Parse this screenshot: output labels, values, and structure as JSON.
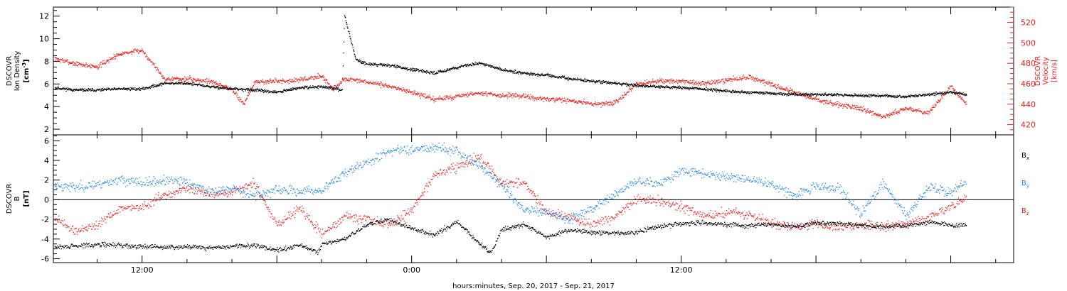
{
  "figure": {
    "xlabel": "hours:minutes, Sep. 20, 2017 - Sep. 21, 2017",
    "x_tick_labels": [
      "12:00",
      "0:00",
      "12:00"
    ]
  },
  "colors": {
    "black": "#000000",
    "red": "#e8201c",
    "blue": "#1e88e5"
  },
  "chart_data": [
    {
      "type": "scatter",
      "panel": "top",
      "xlabel": "hours:minutes, Sep. 20, 2017 - Sep. 21, 2017",
      "x_unit": "hours since Sep. 20, 2017 00:00",
      "xlim": [
        8.05,
        50.8
      ],
      "ylabel": "DSCOVR Ion Density [cm^-3]",
      "ylim": [
        1.5,
        12.8
      ],
      "y_ticks": [
        2,
        4,
        6,
        8,
        10,
        12
      ],
      "y2label": "DSCOVR Velocity [km/s]",
      "y2lim": [
        410,
        535
      ],
      "y2_ticks": [
        420,
        440,
        460,
        480,
        500,
        520
      ],
      "grid": false,
      "series": [
        {
          "name": "Ion Density",
          "axis": "left",
          "color": "black",
          "x": [
            8.1,
            9,
            10,
            11,
            12,
            13,
            14,
            15,
            16,
            17,
            18,
            19,
            20,
            20.9,
            21,
            21.5,
            22,
            23,
            24,
            25,
            26,
            27,
            28,
            29,
            30,
            31,
            32,
            33,
            34,
            35,
            36,
            37,
            38,
            39,
            40,
            41,
            42,
            43,
            44,
            45,
            46,
            47,
            48,
            48.7
          ],
          "y": [
            5.7,
            5.5,
            5.5,
            5.6,
            5.6,
            6.1,
            6.1,
            5.8,
            5.6,
            5.5,
            5.3,
            5.7,
            5.8,
            5.5,
            12.1,
            8.2,
            7.8,
            7.7,
            7.3,
            7.0,
            7.5,
            7.9,
            7.3,
            7.0,
            6.8,
            6.5,
            6.3,
            6.1,
            5.9,
            5.8,
            5.7,
            5.6,
            5.4,
            5.3,
            5.2,
            5.1,
            5.1,
            5.1,
            5.0,
            5.0,
            4.9,
            5.1,
            5.3,
            5.1
          ]
        },
        {
          "name": "Velocity",
          "axis": "right",
          "color": "red",
          "x": [
            8.1,
            9,
            10,
            11,
            12,
            13,
            14,
            15,
            16,
            16.5,
            17,
            18,
            19,
            20,
            20.5,
            21,
            22,
            23,
            24,
            25,
            26,
            27,
            28,
            29,
            30,
            31,
            32,
            33,
            34,
            35,
            36,
            37,
            38,
            39,
            40,
            41,
            42,
            43,
            44,
            45,
            46,
            47,
            48,
            48.7
          ],
          "y": [
            485,
            480,
            477,
            490,
            493,
            465,
            465,
            463,
            455,
            440,
            462,
            463,
            464,
            468,
            455,
            465,
            462,
            458,
            452,
            445,
            448,
            451,
            449,
            448,
            445,
            444,
            441,
            441,
            460,
            463,
            463,
            460,
            464,
            467,
            460,
            452,
            445,
            440,
            436,
            428,
            436,
            432,
            458,
            440
          ]
        }
      ]
    },
    {
      "type": "scatter",
      "panel": "bottom",
      "xlabel": "hours:minutes, Sep. 20, 2017 - Sep. 21, 2017",
      "x_unit": "hours since Sep. 20, 2017 00:00",
      "xlim": [
        8.05,
        50.8
      ],
      "ylabel": "DSCOVR B [nT]",
      "ylim": [
        -6.4,
        6.6
      ],
      "y_ticks": [
        -6,
        -4,
        -2,
        0,
        2,
        4,
        6
      ],
      "grid": false,
      "zero_line": true,
      "series": [
        {
          "name": "B_x",
          "color": "black",
          "x": [
            8.1,
            9,
            10,
            11,
            12,
            13,
            14,
            15,
            16,
            17,
            18,
            19,
            19.8,
            20,
            21,
            22,
            23,
            24,
            25,
            26,
            27,
            27.5,
            28,
            29,
            30,
            31,
            32,
            33,
            34,
            35,
            36,
            37,
            38,
            39,
            40,
            41,
            42,
            43,
            44,
            45,
            46,
            47,
            48,
            48.7
          ],
          "y": [
            -4.8,
            -4.7,
            -4.5,
            -4.6,
            -4.7,
            -4.8,
            -4.7,
            -4.9,
            -4.7,
            -4.6,
            -5.1,
            -4.6,
            -5.3,
            -4.5,
            -4.0,
            -2.5,
            -2.0,
            -2.9,
            -3.5,
            -2.2,
            -4.4,
            -5.4,
            -3.0,
            -2.5,
            -3.8,
            -3.0,
            -3.3,
            -3.4,
            -3.3,
            -2.7,
            -2.4,
            -2.3,
            -2.5,
            -2.6,
            -2.5,
            -2.7,
            -2.3,
            -2.4,
            -2.6,
            -2.7,
            -2.6,
            -2.2,
            -2.6,
            -2.5
          ]
        },
        {
          "name": "B_y",
          "color": "blue",
          "x": [
            8.1,
            9,
            10,
            11,
            12,
            13,
            14,
            15,
            16,
            17,
            18,
            19,
            20,
            21,
            22,
            23,
            24,
            25,
            26,
            27,
            28,
            29,
            30,
            31,
            32,
            33,
            34,
            35,
            36,
            37,
            38,
            39,
            40,
            41,
            42,
            43,
            44,
            45,
            46,
            47,
            48,
            48.7
          ],
          "y": [
            1.5,
            1.3,
            1.6,
            2.1,
            1.7,
            2.0,
            1.8,
            0.8,
            1.2,
            0.5,
            1.0,
            0.9,
            1.0,
            2.8,
            3.8,
            5.0,
            5.2,
            5.4,
            5.0,
            3.5,
            1.5,
            -1.0,
            -1.3,
            -2.0,
            -0.8,
            0.5,
            2.0,
            1.6,
            3.0,
            2.7,
            2.4,
            2.1,
            1.6,
            0.6,
            1.4,
            1.2,
            -1.4,
            1.8,
            -1.6,
            1.3,
            0.7,
            2.0
          ]
        },
        {
          "name": "B_z",
          "color": "red",
          "x": [
            8.1,
            9,
            10,
            11,
            12,
            13,
            14,
            15,
            16,
            17,
            18,
            19,
            20,
            21,
            22,
            23,
            24,
            25,
            26,
            27,
            28,
            29,
            30,
            31,
            32,
            33,
            34,
            35,
            36,
            37,
            38,
            39,
            40,
            41,
            42,
            43,
            44,
            45,
            46,
            47,
            48,
            48.7
          ],
          "y": [
            -1.8,
            -3.2,
            -2.5,
            -0.8,
            -0.7,
            0.5,
            1.2,
            0.5,
            0.8,
            1.6,
            -2.5,
            -0.7,
            -3.5,
            -1.8,
            -1.9,
            -2.6,
            -1.0,
            2.6,
            3.4,
            4.3,
            1.8,
            1.8,
            -1.2,
            -1.7,
            -2.5,
            -1.8,
            0.2,
            -0.1,
            -0.7,
            -1.6,
            -1.2,
            -1.5,
            -2.2,
            -2.7,
            -2.5,
            -2.8,
            -2.5,
            -2.7,
            -2.4,
            -1.8,
            -0.6,
            0.3
          ]
        }
      ]
    }
  ]
}
